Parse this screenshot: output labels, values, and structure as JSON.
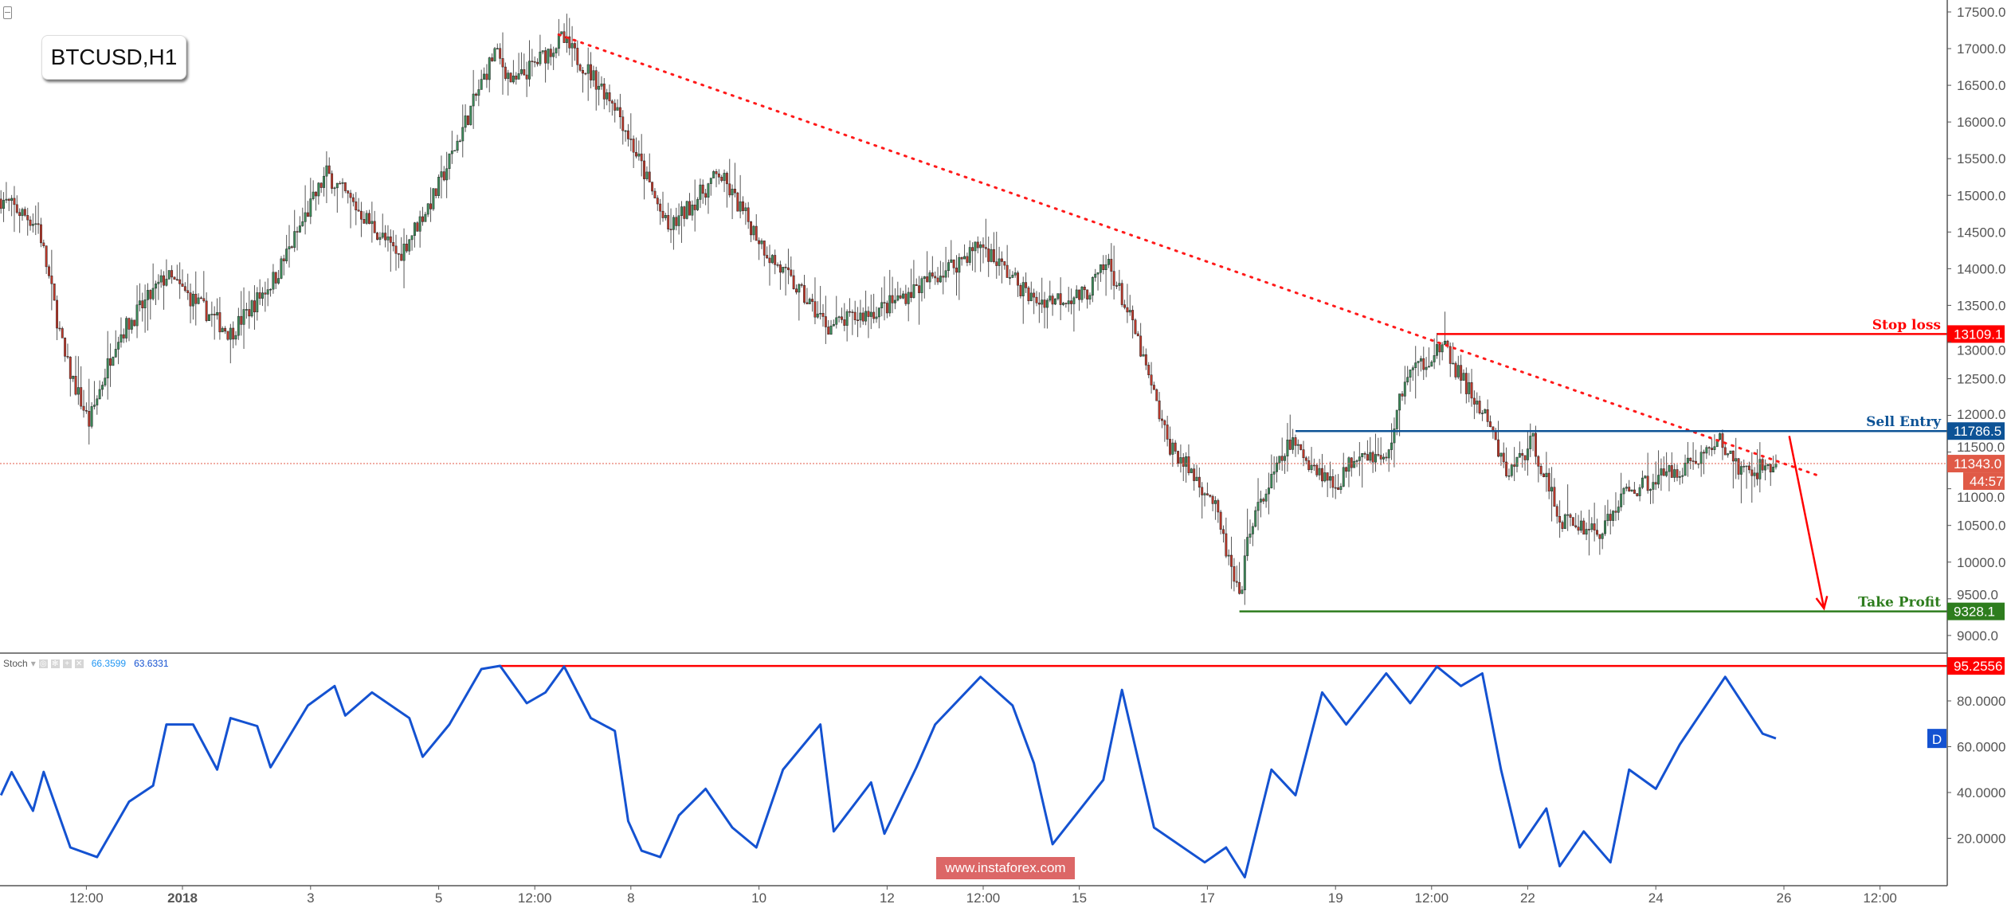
{
  "symbol": "BTCUSD,H1",
  "watermark": "www.instaforex.com",
  "colors": {
    "up": "#3c8c5a",
    "down": "#c0392b",
    "trend": "#ff1a1a",
    "stop": "#ff0000",
    "entry": "#0d5396",
    "take": "#2e7d1e",
    "current": "#e05a47",
    "stoch": "#1452d1"
  },
  "stoch_legend": {
    "name": "Stoch",
    "k": "66.3599",
    "d": "63.6331",
    "buttons": [
      "eye-icon",
      "gear-icon",
      "plus-icon",
      "close-icon"
    ]
  },
  "levels": {
    "stop_loss": {
      "label": "Stop loss",
      "value": 13109.1,
      "text": "13109.1",
      "from": "2018-01-20T14:00"
    },
    "sell_entry": {
      "label": "Sell Entry",
      "value": 11786.5,
      "text": "11786.5",
      "from": "2018-01-18T09:00"
    },
    "take_profit": {
      "label": "Take Profit",
      "value": 9328.1,
      "text": "9328.1",
      "from": "2018-01-17T12:00"
    },
    "current": {
      "value": 11343.0,
      "text": "11343.0",
      "countdown": "44:57"
    },
    "stoch_level": {
      "value": 95.2556,
      "text": "95.2556",
      "from": "2018-01-05T23:00"
    },
    "stoch_d_badge": "D"
  },
  "chart_data": [
    {
      "type": "candlestick",
      "timeframe": "H1",
      "ylim": [
        8800,
        17700
      ],
      "y_ticks": [
        "17500.0",
        "17000.0",
        "16500.0",
        "16000.0",
        "15500.0",
        "15000.0",
        "14500.0",
        "14000.0",
        "13500.0",
        "13000.0",
        "12500.0",
        "12000.0",
        "11500.0",
        "11000.0",
        "10500.0",
        "10000.0",
        "9500.0",
        "9000.0"
      ],
      "x_ticks": [
        {
          "t": "2017-12-30T12:00",
          "label": "12:00"
        },
        {
          "t": "2018-01-01T00:00",
          "label": "2018"
        },
        {
          "t": "2018-01-03T00:00",
          "label": "3"
        },
        {
          "t": "2018-01-05T00:00",
          "label": "5"
        },
        {
          "t": "2018-01-06T12:00",
          "label": "12:00"
        },
        {
          "t": "2018-01-08T00:00",
          "label": "8"
        },
        {
          "t": "2018-01-10T00:00",
          "label": "10"
        },
        {
          "t": "2018-01-12T00:00",
          "label": "12"
        },
        {
          "t": "2018-01-13T12:00",
          "label": "12:00"
        },
        {
          "t": "2018-01-15T00:00",
          "label": "15"
        },
        {
          "t": "2018-01-17T00:00",
          "label": "17"
        },
        {
          "t": "2018-01-19T00:00",
          "label": "19"
        },
        {
          "t": "2018-01-20T12:00",
          "label": "12:00"
        },
        {
          "t": "2018-01-22T00:00",
          "label": "22"
        },
        {
          "t": "2018-01-24T00:00",
          "label": "24"
        },
        {
          "t": "2018-01-26T00:00",
          "label": "26"
        },
        {
          "t": "2018-01-27T12:00",
          "label": "12:00"
        }
      ],
      "close_path": [
        [
          "2017-12-29T04:00",
          14950
        ],
        [
          "2017-12-29T18:00",
          14600
        ],
        [
          "2017-12-30T04:00",
          12770
        ],
        [
          "2017-12-30T13:00",
          11900
        ],
        [
          "2017-12-30T23:00",
          13030
        ],
        [
          "2017-12-31T18:00",
          13900
        ],
        [
          "2018-01-01T18:00",
          13120
        ],
        [
          "2018-01-02T11:00",
          13900
        ],
        [
          "2018-01-03T06:00",
          15300
        ],
        [
          "2018-01-04T09:00",
          14170
        ],
        [
          "2018-01-04T23:00",
          15040
        ],
        [
          "2018-01-05T09:00",
          15910
        ],
        [
          "2018-01-05T21:00",
          16960
        ],
        [
          "2018-01-06T04:00",
          16520
        ],
        [
          "2018-01-06T22:00",
          17130
        ],
        [
          "2018-01-07T18:00",
          16260
        ],
        [
          "2018-01-08T14:00",
          14520
        ],
        [
          "2018-01-09T09:00",
          15300
        ],
        [
          "2018-01-10T04:00",
          14170
        ],
        [
          "2018-01-11T02:00",
          13210
        ],
        [
          "2018-01-11T23:00",
          13470
        ],
        [
          "2018-01-13T02:00",
          14080
        ],
        [
          "2018-01-13T11:00",
          14340
        ],
        [
          "2018-01-14T07:00",
          13560
        ],
        [
          "2018-01-15T02:00",
          13640
        ],
        [
          "2018-01-15T11:00",
          14080
        ],
        [
          "2018-01-15T21:00",
          13120
        ],
        [
          "2018-01-16T09:00",
          11640
        ],
        [
          "2018-01-17T02:00",
          10850
        ],
        [
          "2018-01-17T12:00",
          9460
        ],
        [
          "2018-01-17T16:00",
          10500
        ],
        [
          "2018-01-18T07:00",
          11640
        ],
        [
          "2018-01-19T00:00",
          11030
        ],
        [
          "2018-01-19T09:00",
          11550
        ],
        [
          "2018-01-19T19:00",
          11370
        ],
        [
          "2018-01-20T02:00",
          12510
        ],
        [
          "2018-01-20T16:00",
          12950
        ],
        [
          "2018-01-21T09:00",
          11900
        ],
        [
          "2018-01-21T16:00",
          11200
        ],
        [
          "2018-01-22T02:00",
          11640
        ],
        [
          "2018-01-22T12:00",
          10590
        ],
        [
          "2018-01-23T04:00",
          10410
        ],
        [
          "2018-01-23T12:00",
          10940
        ],
        [
          "2018-01-24T14:00",
          11370
        ],
        [
          "2018-01-25T00:00",
          11640
        ],
        [
          "2018-01-25T09:00",
          11200
        ],
        [
          "2018-01-25T21:00",
          11343
        ]
      ],
      "trendline": {
        "from": [
          "2018-01-06T21:00",
          17190
        ],
        "to": [
          "2018-01-26T14:00",
          11165
        ],
        "style": "dotted"
      },
      "arrow": {
        "from": [
          "2018-01-26T02:00",
          11720
        ],
        "to": [
          "2018-01-26T15:00",
          9370
        ]
      }
    },
    {
      "type": "line",
      "indicator": "Stoch",
      "ylim": [
        0,
        100
      ],
      "y_ticks": [
        "80.0000",
        "60.0000",
        "40.0000",
        "20.0000"
      ],
      "points": [
        [
          "2017-12-29T04:00",
          38.8
        ],
        [
          "2017-12-29T08:00",
          48.9
        ],
        [
          "2017-12-29T16:00",
          32
        ],
        [
          "2017-12-29T20:00",
          49
        ],
        [
          "2017-12-30T06:00",
          16
        ],
        [
          "2017-12-30T16:00",
          11.8
        ],
        [
          "2017-12-31T04:00",
          36
        ],
        [
          "2017-12-31T13:00",
          43
        ],
        [
          "2017-12-31T18:00",
          69.7
        ],
        [
          "2018-01-01T04:00",
          69.7
        ],
        [
          "2018-01-01T13:00",
          50
        ],
        [
          "2018-01-01T18:00",
          72.5
        ],
        [
          "2018-01-02T04:00",
          69
        ],
        [
          "2018-01-02T09:00",
          51
        ],
        [
          "2018-01-02T23:00",
          78
        ],
        [
          "2018-01-03T09:00",
          86.5
        ],
        [
          "2018-01-03T13:00",
          73.6
        ],
        [
          "2018-01-03T23:00",
          83.7
        ],
        [
          "2018-01-04T13:00",
          72.5
        ],
        [
          "2018-01-04T18:00",
          55.6
        ],
        [
          "2018-01-05T04:00",
          69.7
        ],
        [
          "2018-01-05T16:00",
          93.9
        ],
        [
          "2018-01-05T23:00",
          95.3
        ],
        [
          "2018-01-06T09:00",
          79
        ],
        [
          "2018-01-06T16:00",
          83.7
        ],
        [
          "2018-01-06T23:00",
          95
        ],
        [
          "2018-01-07T09:00",
          72.5
        ],
        [
          "2018-01-07T18:00",
          66.9
        ],
        [
          "2018-01-07T23:00",
          27.5
        ],
        [
          "2018-01-08T04:00",
          14.6
        ],
        [
          "2018-01-08T11:00",
          11.8
        ],
        [
          "2018-01-08T18:00",
          30
        ],
        [
          "2018-01-09T04:00",
          41.6
        ],
        [
          "2018-01-09T14:00",
          24.7
        ],
        [
          "2018-01-09T23:00",
          16
        ],
        [
          "2018-01-10T09:00",
          50
        ],
        [
          "2018-01-10T23:00",
          69.7
        ],
        [
          "2018-01-11T04:00",
          23
        ],
        [
          "2018-01-11T18:00",
          44.4
        ],
        [
          "2018-01-11T23:00",
          22
        ],
        [
          "2018-01-12T11:00",
          51
        ],
        [
          "2018-01-12T18:00",
          69.7
        ],
        [
          "2018-01-13T11:00",
          90.5
        ],
        [
          "2018-01-13T23:00",
          78
        ],
        [
          "2018-01-14T07:00",
          52.8
        ],
        [
          "2018-01-14T14:00",
          17.4
        ],
        [
          "2018-01-15T09:00",
          45.5
        ],
        [
          "2018-01-15T16:00",
          84.8
        ],
        [
          "2018-01-16T04:00",
          24.7
        ],
        [
          "2018-01-16T23:00",
          9.5
        ],
        [
          "2018-01-17T07:00",
          16
        ],
        [
          "2018-01-17T14:00",
          3
        ],
        [
          "2018-01-18T00:00",
          50
        ],
        [
          "2018-01-18T09:00",
          38.8
        ],
        [
          "2018-01-18T19:00",
          83.7
        ],
        [
          "2018-01-19T04:00",
          69.7
        ],
        [
          "2018-01-19T19:00",
          92
        ],
        [
          "2018-01-20T04:00",
          79
        ],
        [
          "2018-01-20T14:00",
          95
        ],
        [
          "2018-01-20T23:00",
          86.5
        ],
        [
          "2018-01-21T07:00",
          92
        ],
        [
          "2018-01-21T14:00",
          50
        ],
        [
          "2018-01-21T21:00",
          16
        ],
        [
          "2018-01-22T07:00",
          33
        ],
        [
          "2018-01-22T12:00",
          7.8
        ],
        [
          "2018-01-22T21:00",
          23
        ],
        [
          "2018-01-23T07:00",
          9.5
        ],
        [
          "2018-01-23T14:00",
          50
        ],
        [
          "2018-01-24T00:00",
          41.6
        ],
        [
          "2018-01-24T09:00",
          61
        ],
        [
          "2018-01-25T02:00",
          90.5
        ],
        [
          "2018-01-25T16:00",
          65.7
        ],
        [
          "2018-01-25T21:00",
          63.6
        ]
      ]
    }
  ]
}
